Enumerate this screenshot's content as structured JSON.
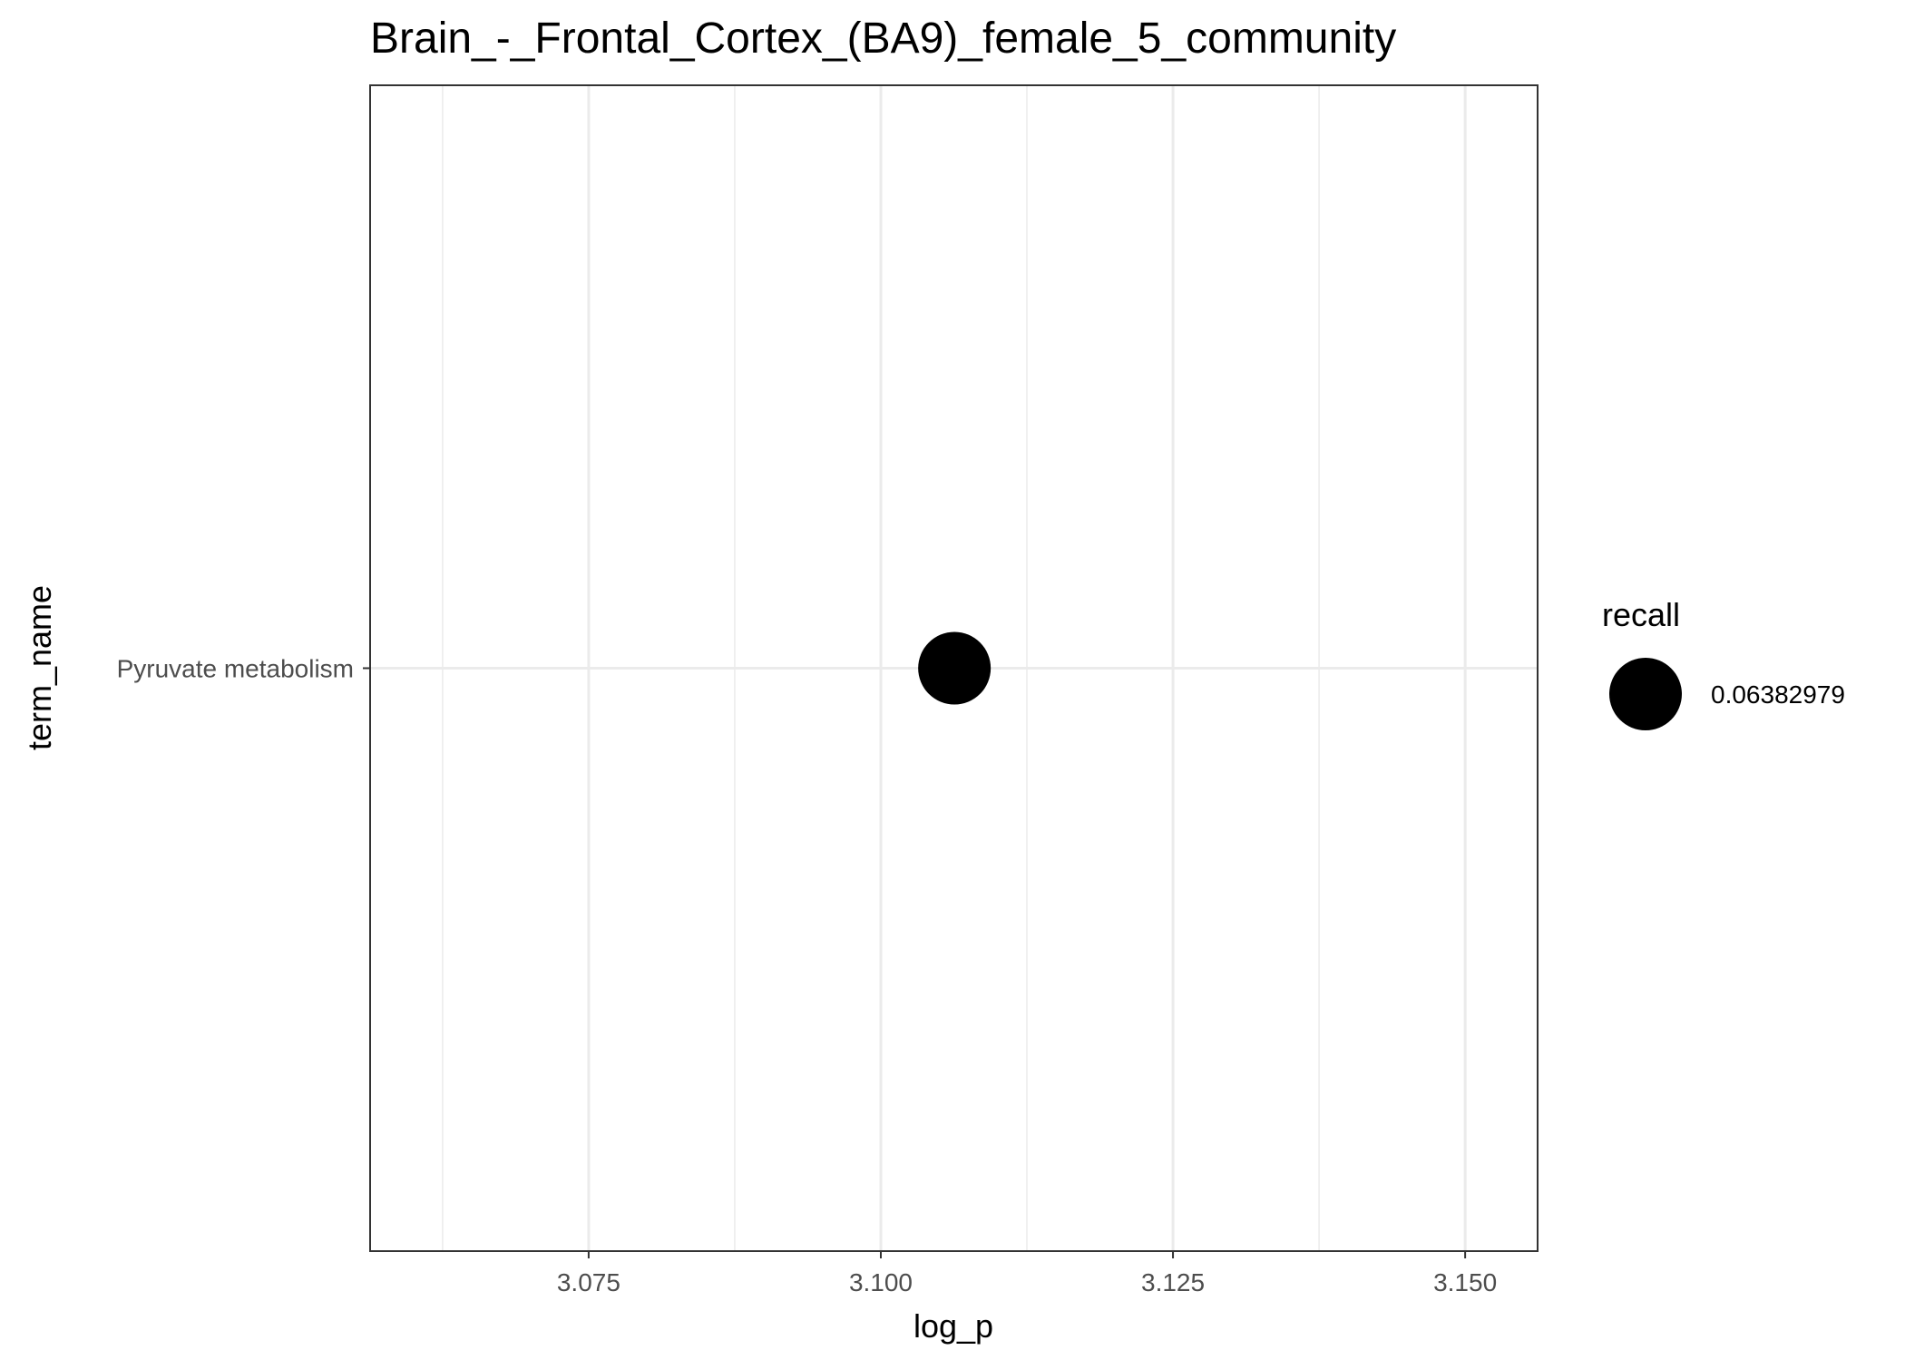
{
  "chart_data": {
    "type": "scatter",
    "title": "Brain_-_Frontal_Cortex_(BA9)_female_5_community",
    "xlabel": "log_p",
    "ylabel": "term_name",
    "xlim": [
      3.0563,
      3.1562
    ],
    "x_major_ticks": [
      3.075,
      3.1,
      3.125,
      3.15
    ],
    "x_tick_labels": [
      "3.075",
      "3.100",
      "3.125",
      "3.150"
    ],
    "x_minor_ticks": [
      3.0625,
      3.0875,
      3.1125,
      3.1375
    ],
    "categories": [
      "Pyruvate metabolism"
    ],
    "points": [
      {
        "term_name": "Pyruvate metabolism",
        "log_p": 3.1063,
        "recall": 0.06382979
      }
    ],
    "legend": {
      "title": "recall",
      "entries": [
        "0.06382979"
      ],
      "position": "right"
    },
    "grid": true,
    "point_color": "#000000"
  }
}
